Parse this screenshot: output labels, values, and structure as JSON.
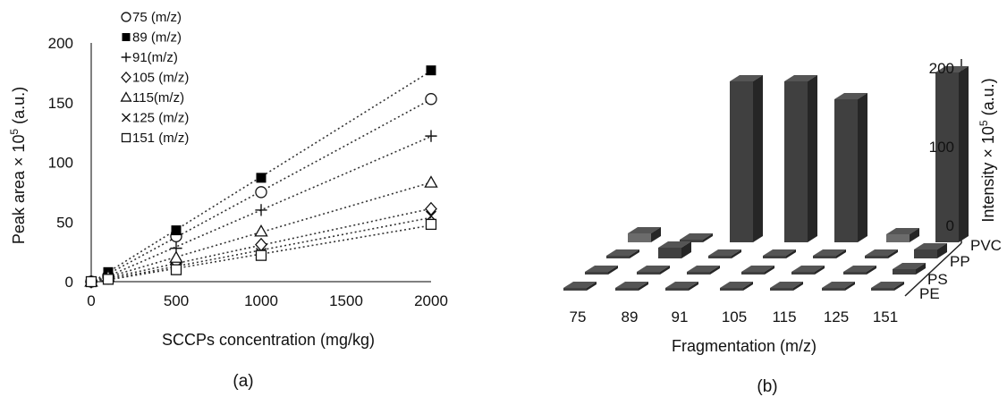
{
  "chart_data": [
    {
      "type": "scatter",
      "panel_label": "(a)",
      "xlabel": "SCCPs concentration (mg/kg)",
      "ylabel_base": "Peak area × 10",
      "ylabel_exp": "5",
      "ylabel_unit": " (a.u.)",
      "xlim": [
        0,
        2000
      ],
      "ylim": [
        0,
        200
      ],
      "xticks": [
        "0",
        "500",
        "1000",
        "1500",
        "2000"
      ],
      "yticks": [
        "0",
        "50",
        "100",
        "150",
        "200"
      ],
      "trendlines": "dotted linear fits",
      "x": [
        0,
        100,
        500,
        1000,
        2000
      ],
      "series": [
        {
          "name": "75 (m/z)",
          "legend": "75 (m/z)",
          "marker": "open-circle",
          "values": [
            0,
            5,
            38,
            75,
            153
          ]
        },
        {
          "name": "89 (m/z)",
          "legend": "89 (m/z)",
          "marker": "filled-square",
          "values": [
            0,
            8,
            43,
            87,
            177
          ]
        },
        {
          "name": "91 (m/z)",
          "legend": "+91(m/z)",
          "marker": "plus",
          "values": [
            0,
            4,
            28,
            60,
            122
          ]
        },
        {
          "name": "105 (m/z)",
          "legend": "105 (m/z)",
          "marker": "open-diamond",
          "values": [
            0,
            3,
            15,
            31,
            61
          ]
        },
        {
          "name": "115 (m/z)",
          "legend": "115(m/z)",
          "marker": "open-triangle",
          "values": [
            0,
            4,
            20,
            42,
            83
          ]
        },
        {
          "name": "125 (m/z)",
          "legend": "125 (m/z)",
          "marker": "cross",
          "values": [
            0,
            3,
            12,
            24,
            55
          ]
        },
        {
          "name": "151 (m/z)",
          "legend": "151 (m/z)",
          "marker": "open-square",
          "values": [
            0,
            2,
            10,
            22,
            48
          ]
        }
      ]
    },
    {
      "type": "bar",
      "subtype": "3d-bar",
      "panel_label": "(b)",
      "xlabel": "Fragmentation (m/z)",
      "zlabel_base": "Intensity × 10",
      "zlabel_exp": "5",
      "zlabel_unit": " (a.u.)",
      "zlim": [
        0,
        200
      ],
      "zticks": [
        "0",
        "100",
        "200"
      ],
      "categories": [
        "75",
        "89",
        "91",
        "105",
        "115",
        "125",
        "151"
      ],
      "series": [
        {
          "name": "PE",
          "values": [
            0,
            0,
            0,
            0,
            0,
            0,
            0
          ]
        },
        {
          "name": "PS",
          "values": [
            0,
            0,
            0,
            0,
            0,
            0,
            6
          ]
        },
        {
          "name": "PP",
          "values": [
            0,
            12,
            0,
            0,
            0,
            0,
            10
          ]
        },
        {
          "name": "PVC",
          "values": [
            10,
            0,
            180,
            180,
            160,
            9,
            190
          ]
        }
      ],
      "bar_colors": {
        "default": "#404040",
        "light": "#6b6b6b"
      }
    }
  ]
}
